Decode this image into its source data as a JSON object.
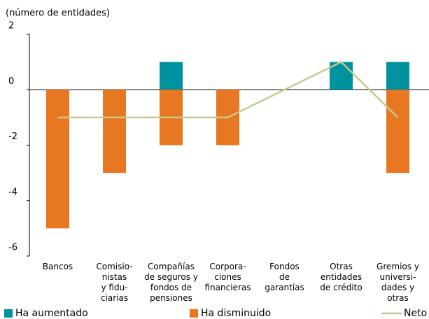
{
  "chart_data": {
    "type": "bar",
    "y_label": "(número de entidades)",
    "categories": [
      [
        "Bancos"
      ],
      [
        "Comisio-",
        "nistas",
        "y fidu-",
        "ciarias"
      ],
      [
        "Compañías",
        "de seguros y",
        "fondos de",
        "pensiones"
      ],
      [
        "Corpora-",
        "ciones",
        "financieras"
      ],
      [
        "Fondos",
        "de",
        "garantías"
      ],
      [
        "Otras",
        "entidades",
        "de crédito"
      ],
      [
        "Gremios y",
        "universi-",
        "dades y",
        "otras"
      ]
    ],
    "series": [
      {
        "name": "Ha aumentado",
        "type": "bar",
        "color": "#00929f",
        "values": [
          0,
          0,
          1,
          0,
          0,
          1,
          1
        ]
      },
      {
        "name": "Ha disminuido",
        "type": "bar",
        "color": "#e87722",
        "values": [
          -5,
          -3,
          -2,
          -2,
          0,
          0,
          -3
        ]
      },
      {
        "name": "Neto",
        "type": "line",
        "color": "#c5c98f",
        "values": [
          -1,
          -1,
          -1,
          -1,
          0,
          1,
          -1
        ]
      }
    ],
    "ylim": [
      -6,
      2
    ],
    "yticks": [
      -6,
      -4,
      -2,
      0,
      2
    ],
    "grid": false
  }
}
